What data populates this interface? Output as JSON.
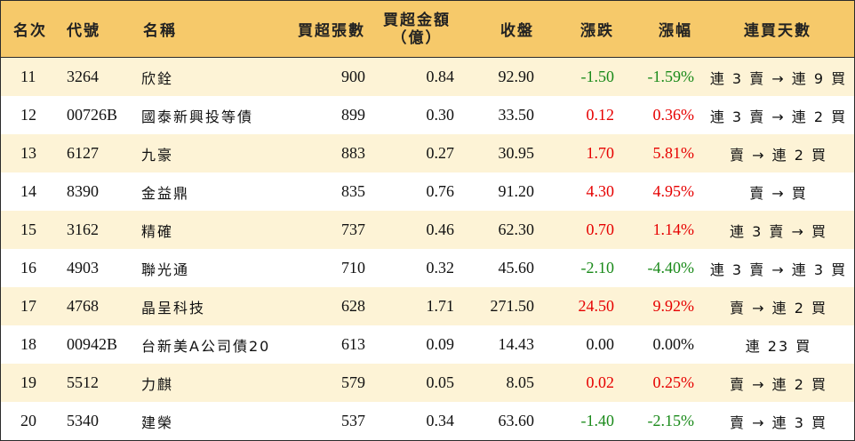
{
  "header": {
    "rank": "名次",
    "code": "代號",
    "name": "名稱",
    "lots": "買超張數",
    "amount_line1": "買超金額",
    "amount_line2": "（億）",
    "close": "收盤",
    "change": "漲跌",
    "pct": "漲幅",
    "days": "連買天數"
  },
  "colors": {
    "header_bg": "#f6c96a",
    "stripe_bg": "#fdf3d6",
    "up": "#e60000",
    "down": "#1a8a1a",
    "flat": "#111111"
  },
  "rows": [
    {
      "rank": "11",
      "code": "3264",
      "name": "欣銓",
      "lots": "900",
      "amount": "0.84",
      "close": "92.90",
      "change": "-1.50",
      "pct": "-1.59%",
      "days": "連 3 賣 → 連 9 買",
      "trend": "down"
    },
    {
      "rank": "12",
      "code": "00726B",
      "name": "國泰新興投等債",
      "lots": "899",
      "amount": "0.30",
      "close": "33.50",
      "change": "0.12",
      "pct": "0.36%",
      "days": "連 3 賣 → 連 2 買",
      "trend": "up"
    },
    {
      "rank": "13",
      "code": "6127",
      "name": "九豪",
      "lots": "883",
      "amount": "0.27",
      "close": "30.95",
      "change": "1.70",
      "pct": "5.81%",
      "days": "賣 → 連 2 買",
      "trend": "up"
    },
    {
      "rank": "14",
      "code": "8390",
      "name": "金益鼎",
      "lots": "835",
      "amount": "0.76",
      "close": "91.20",
      "change": "4.30",
      "pct": "4.95%",
      "days": "賣 → 買",
      "trend": "up"
    },
    {
      "rank": "15",
      "code": "3162",
      "name": "精確",
      "lots": "737",
      "amount": "0.46",
      "close": "62.30",
      "change": "0.70",
      "pct": "1.14%",
      "days": "連 3 賣 → 買",
      "trend": "up"
    },
    {
      "rank": "16",
      "code": "4903",
      "name": "聯光通",
      "lots": "710",
      "amount": "0.32",
      "close": "45.60",
      "change": "-2.10",
      "pct": "-4.40%",
      "days": "連 3 賣 → 連 3 買",
      "trend": "down"
    },
    {
      "rank": "17",
      "code": "4768",
      "name": "晶呈科技",
      "lots": "628",
      "amount": "1.71",
      "close": "271.50",
      "change": "24.50",
      "pct": "9.92%",
      "days": "賣 → 連 2 買",
      "trend": "up"
    },
    {
      "rank": "18",
      "code": "00942B",
      "name": "台新美A公司債20",
      "lots": "613",
      "amount": "0.09",
      "close": "14.43",
      "change": "0.00",
      "pct": "0.00%",
      "days": "連 23 買",
      "trend": "flat"
    },
    {
      "rank": "19",
      "code": "5512",
      "name": "力麒",
      "lots": "579",
      "amount": "0.05",
      "close": "8.05",
      "change": "0.02",
      "pct": "0.25%",
      "days": "賣 → 連 2 買",
      "trend": "up"
    },
    {
      "rank": "20",
      "code": "5340",
      "name": "建榮",
      "lots": "537",
      "amount": "0.34",
      "close": "63.60",
      "change": "-1.40",
      "pct": "-2.15%",
      "days": "賣 → 連 3 買",
      "trend": "down"
    }
  ]
}
